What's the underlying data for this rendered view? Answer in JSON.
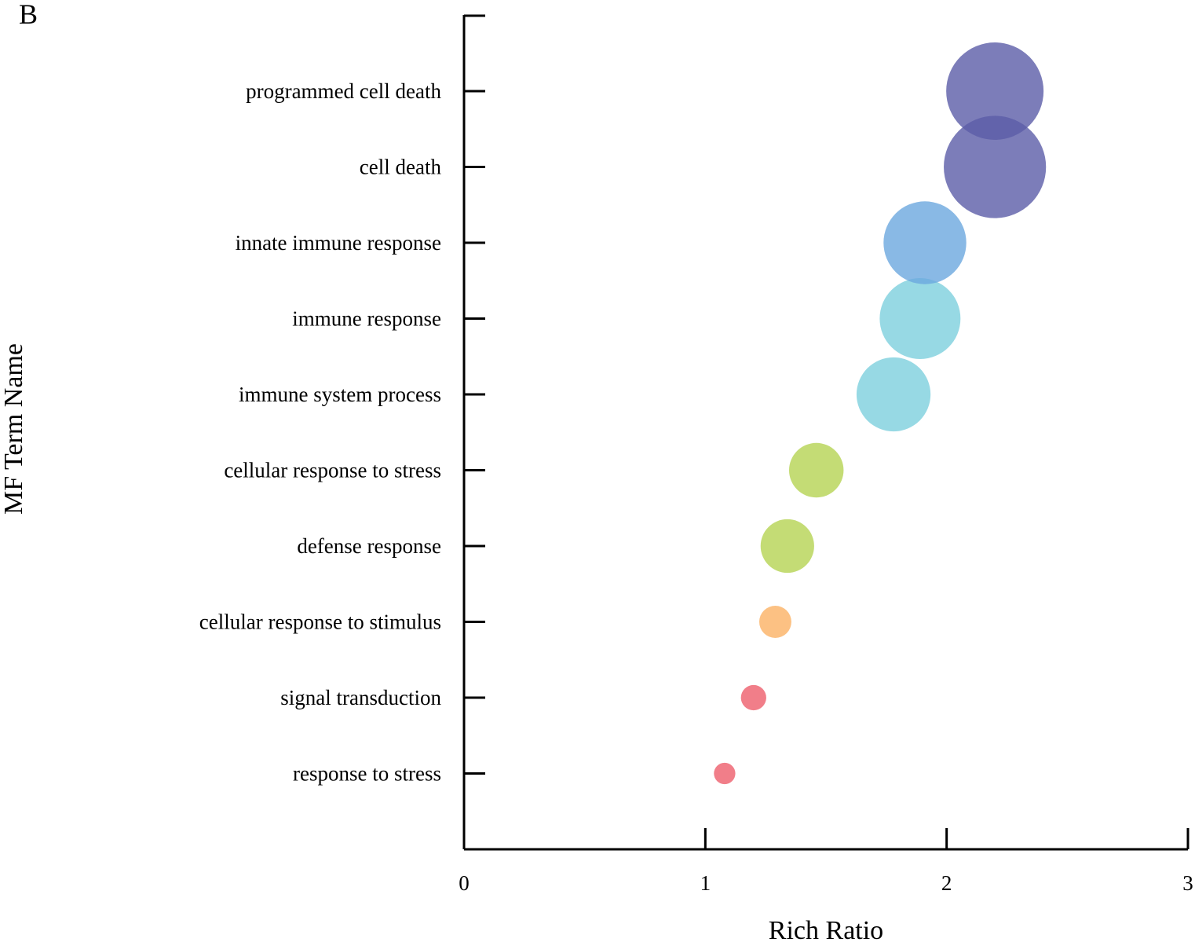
{
  "panel_label": "B",
  "chart_data": {
    "type": "scatter",
    "subtype": "bubble",
    "xlabel": "Rich Ratio",
    "ylabel": "MF Term Name",
    "xlim": [
      0,
      3
    ],
    "xticks": [
      "0",
      "1",
      "2",
      "3"
    ],
    "grid": false,
    "legend": "none",
    "categories": [
      "programmed cell death",
      "cell death",
      "innate immune response",
      "immune response",
      "immune system process",
      "cellular response to stress",
      "defense response",
      "cellular response to stimulus",
      "signal transduction",
      "response to stress"
    ],
    "points": [
      {
        "term": "programmed cell death",
        "x": 2.2,
        "size": 10,
        "color": "#5b5ca8"
      },
      {
        "term": "cell death",
        "x": 2.2,
        "size": 10.5,
        "color": "#5b5ca8"
      },
      {
        "term": "innate immune response",
        "x": 1.91,
        "size": 8.5,
        "color": "#6ba7de"
      },
      {
        "term": "immune response",
        "x": 1.89,
        "size": 8.3,
        "color": "#7dd0dd"
      },
      {
        "term": "immune system process",
        "x": 1.78,
        "size": 7.6,
        "color": "#7dd0dd"
      },
      {
        "term": "cellular response to stress",
        "x": 1.46,
        "size": 5.6,
        "color": "#b5d352"
      },
      {
        "term": "defense response",
        "x": 1.34,
        "size": 5.5,
        "color": "#b5d352"
      },
      {
        "term": "cellular response to stimulus",
        "x": 1.29,
        "size": 3.3,
        "color": "#fbb264"
      },
      {
        "term": "signal transduction",
        "x": 1.2,
        "size": 2.6,
        "color": "#ee5e6b"
      },
      {
        "term": "response to stress",
        "x": 1.08,
        "size": 2.2,
        "color": "#ee5e6b"
      }
    ]
  }
}
